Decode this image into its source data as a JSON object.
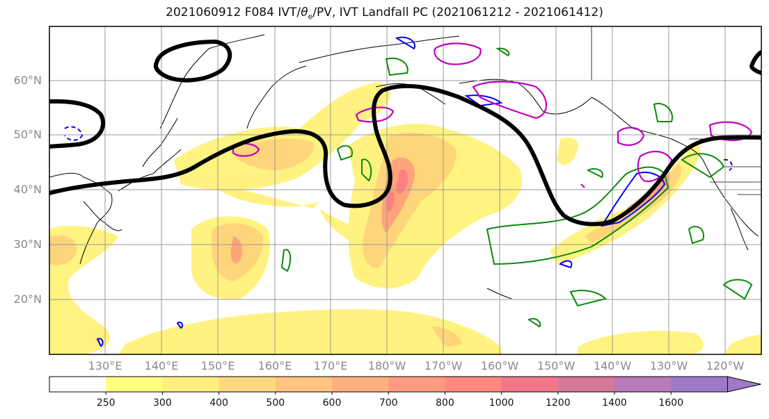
{
  "title": "2021060912 F084 IVT/θe/PV, IVT Landfall PC (2021061212 - 2021061412)",
  "title_prefix": "2021060912 F084 IVT/",
  "title_theta": "θ",
  "title_theta_sub": "e",
  "title_suffix": "/PV, IVT Landfall PC (2021061212 - 2021061412)",
  "lat_labels": [
    "60°N",
    "50°N",
    "40°N",
    "30°N",
    "20°N"
  ],
  "lon_labels": [
    "130°E",
    "140°E",
    "150°E",
    "160°E",
    "170°E",
    "180°W",
    "170°W",
    "160°W",
    "150°W",
    "140°W",
    "130°W",
    "120°W"
  ],
  "colorbar": {
    "labels": [
      "250",
      "300",
      "400",
      "500",
      "600",
      "700",
      "800",
      "1000",
      "1200",
      "1400",
      "1600"
    ],
    "colors": [
      "#ffffff",
      "#ffff80",
      "#ffee80",
      "#ffd880",
      "#ffc480",
      "#ffb080",
      "#ff9c80",
      "#ff8880",
      "#f07888",
      "#d87898",
      "#b87ab8",
      "#a07ac8"
    ]
  },
  "colors": {
    "ivt_light": "#fff27a",
    "ivt_mid": "#ffd27a",
    "ivt_high": "#ff9a7a",
    "ivt_core": "#ff7a80",
    "pv_contour": "#000000",
    "theta_green": "#0a8a0a",
    "blue_contour": "#0000ff",
    "magenta_contour": "#c000c0",
    "grid": "#999999",
    "axis_label": "#888888"
  }
}
